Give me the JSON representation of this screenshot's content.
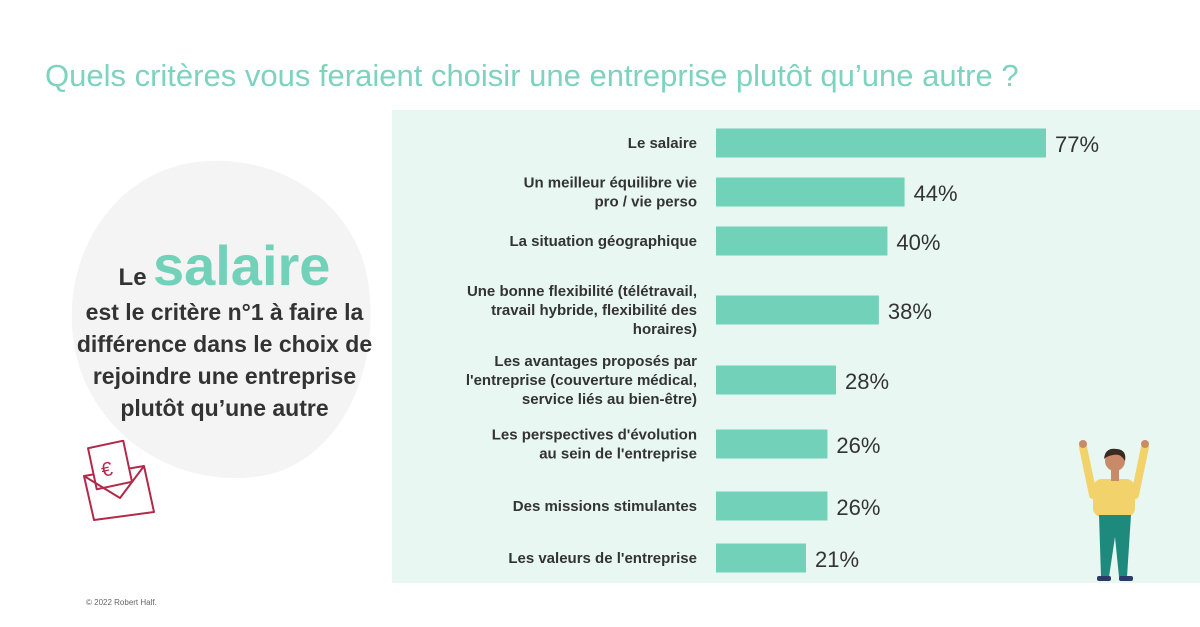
{
  "title": "Quels critères vous feraient choisir une entreprise plutôt qu’une autre ?",
  "callout": {
    "le": "Le",
    "highlight": "salaire",
    "rest": "est le critère n°1 à faire la différence dans le choix de rejoindre une entreprise plutôt qu’une autre"
  },
  "footer": "© 2022 Robert Half.",
  "colors": {
    "accent": "#72d1b9",
    "title": "#7dd3c0",
    "panel": "#e9f7f2",
    "envelope": "#b22a4a"
  },
  "icons": {
    "envelope": "euro-envelope-icon",
    "person": "cheering-person-illustration"
  },
  "chart_data": {
    "type": "bar",
    "orientation": "horizontal",
    "title": "Quels critères vous feraient choisir une entreprise plutôt qu’une autre ?",
    "value_suffix": "%",
    "xlim": [
      0,
      77
    ],
    "categories": [
      [
        "Le salaire"
      ],
      [
        "Un meilleur équilibre vie",
        "pro / vie perso"
      ],
      [
        "La situation géographique"
      ],
      [
        "Une bonne flexibilité (télétravail,",
        "travail hybride, flexibilité des",
        "horaires)"
      ],
      [
        "Les avantages proposés par",
        "l'entreprise (couverture médical,",
        "service liés au bien-être)"
      ],
      [
        "Les perspectives d'évolution",
        "au sein de l'entreprise"
      ],
      [
        "Des missions stimulantes"
      ],
      [
        "Les valeurs de l'entreprise"
      ]
    ],
    "values": [
      77,
      44,
      40,
      38,
      28,
      26,
      26,
      21
    ]
  }
}
